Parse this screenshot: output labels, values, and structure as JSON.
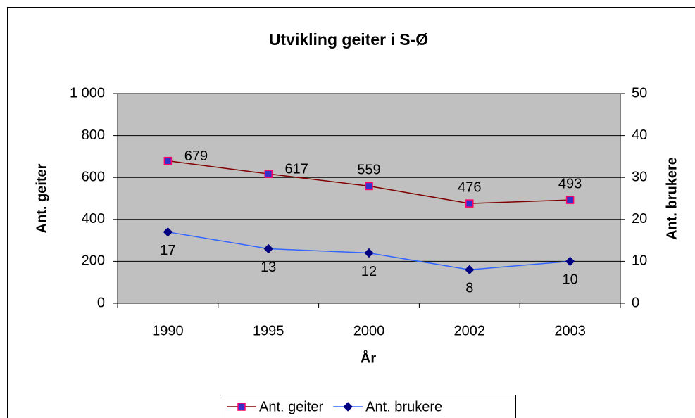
{
  "chart_data": {
    "type": "line",
    "title": "Utvikling geiter i S-Ø",
    "x_label": "År",
    "y_label": "Ant. geiter",
    "y2_label": "Ant. brukere",
    "categories": [
      "1990",
      "1995",
      "2000",
      "2002",
      "2003"
    ],
    "ylim": [
      0,
      1000
    ],
    "yticks": [
      0,
      200,
      400,
      600,
      800,
      {
        "value": 1000,
        "label": "1 000"
      }
    ],
    "y2lim": [
      0,
      50
    ],
    "y2ticks": [
      0,
      10,
      20,
      30,
      40,
      50
    ],
    "grid": true,
    "legend": "bottom",
    "series": [
      {
        "name": "Ant. geiter",
        "color": "#800000",
        "marker": "square",
        "marker_fill": "#3333cc",
        "marker_stroke": "#ff0066",
        "values": [
          679,
          617,
          559,
          476,
          493
        ]
      },
      {
        "name": "Ant. brukere",
        "color": "#3366ff",
        "marker": "diamond",
        "marker_fill": "#000080",
        "marker_stroke": "#000080",
        "axis": "y2",
        "values": [
          17,
          13,
          12,
          8,
          10
        ]
      }
    ]
  }
}
